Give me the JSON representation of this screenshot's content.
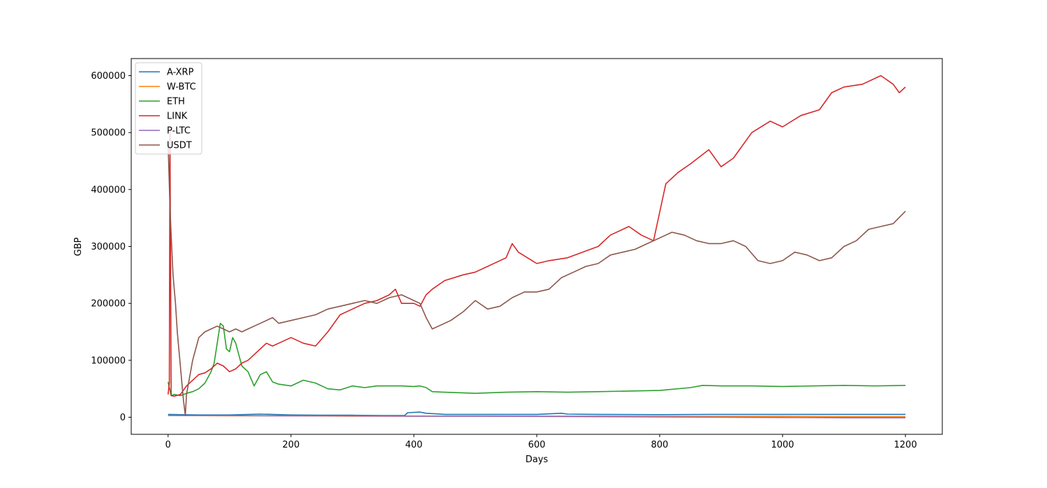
{
  "chart_data": {
    "type": "line",
    "title": "",
    "xlabel": "Days",
    "ylabel": "GBP",
    "xlim": [
      -60,
      1260
    ],
    "ylim": [
      -30000,
      630000
    ],
    "xticks": [
      0,
      200,
      400,
      600,
      800,
      1000,
      1200
    ],
    "yticks": [
      0,
      100000,
      200000,
      300000,
      400000,
      500000,
      600000
    ],
    "grid": false,
    "legend_position": "top-left",
    "series": [
      {
        "name": "A-XRP",
        "color": "#1f77b4",
        "x": [
          0,
          50,
          100,
          150,
          200,
          250,
          300,
          350,
          385,
          390,
          410,
          420,
          450,
          500,
          550,
          600,
          640,
          650,
          700,
          800,
          900,
          1000,
          1100,
          1200
        ],
        "y": [
          5000,
          4000,
          4000,
          5500,
          4000,
          3500,
          3500,
          3000,
          3000,
          8000,
          9000,
          7000,
          5000,
          5000,
          5000,
          5000,
          7000,
          5500,
          5000,
          4500,
          5000,
          5000,
          5000,
          5000
        ]
      },
      {
        "name": "W-BTC",
        "color": "#ff7f0e",
        "x": [
          0,
          100,
          200,
          300,
          400,
          500,
          600,
          700,
          800,
          900,
          1000,
          1100,
          1200
        ],
        "y": [
          3000,
          2500,
          2500,
          2000,
          2000,
          2000,
          2000,
          2000,
          1500,
          1500,
          1500,
          1000,
          1000
        ]
      },
      {
        "name": "ETH",
        "color": "#2ca02c",
        "x": [
          0,
          5,
          10,
          20,
          30,
          40,
          50,
          60,
          70,
          75,
          80,
          85,
          90,
          95,
          100,
          105,
          110,
          115,
          120,
          130,
          140,
          150,
          160,
          170,
          180,
          200,
          220,
          240,
          260,
          280,
          300,
          320,
          340,
          360,
          380,
          400,
          410,
          420,
          430,
          450,
          500,
          550,
          600,
          650,
          700,
          750,
          800,
          850,
          870,
          900,
          950,
          1000,
          1050,
          1100,
          1150,
          1200
        ],
        "y": [
          62000,
          38000,
          40000,
          38000,
          42000,
          45000,
          50000,
          60000,
          80000,
          95000,
          130000,
          165000,
          160000,
          120000,
          115000,
          140000,
          130000,
          110000,
          90000,
          80000,
          55000,
          75000,
          80000,
          62000,
          58000,
          55000,
          65000,
          60000,
          50000,
          48000,
          55000,
          52000,
          55000,
          55000,
          55000,
          54000,
          55000,
          52000,
          45000,
          44000,
          42000,
          44000,
          45000,
          44000,
          45000,
          46000,
          47000,
          52000,
          56000,
          55000,
          55000,
          54000,
          55000,
          56000,
          55000,
          56000
        ]
      },
      {
        "name": "LINK",
        "color": "#d62728",
        "x": [
          0,
          2,
          3,
          5,
          10,
          20,
          30,
          40,
          50,
          60,
          70,
          80,
          90,
          100,
          110,
          120,
          130,
          140,
          150,
          160,
          170,
          180,
          200,
          220,
          240,
          260,
          280,
          300,
          320,
          340,
          360,
          370,
          380,
          400,
          410,
          420,
          430,
          450,
          480,
          500,
          520,
          550,
          560,
          570,
          600,
          620,
          650,
          700,
          720,
          750,
          770,
          790,
          800,
          810,
          830,
          850,
          880,
          900,
          920,
          950,
          980,
          1000,
          1030,
          1060,
          1080,
          1100,
          1130,
          1160,
          1180,
          1190,
          1200
        ],
        "y": [
          40000,
          60000,
          500000,
          38000,
          37000,
          40000,
          55000,
          65000,
          75000,
          78000,
          85000,
          95000,
          90000,
          80000,
          85000,
          95000,
          100000,
          110000,
          120000,
          130000,
          125000,
          130000,
          140000,
          130000,
          125000,
          150000,
          180000,
          190000,
          200000,
          205000,
          215000,
          225000,
          200000,
          200000,
          195000,
          215000,
          225000,
          240000,
          250000,
          255000,
          265000,
          280000,
          305000,
          290000,
          270000,
          275000,
          280000,
          300000,
          320000,
          335000,
          320000,
          310000,
          360000,
          410000,
          430000,
          445000,
          470000,
          440000,
          455000,
          500000,
          520000,
          510000,
          530000,
          540000,
          570000,
          580000,
          585000,
          600000,
          585000,
          570000,
          580000
        ]
      },
      {
        "name": "P-LTC",
        "color": "#9467bd",
        "x": [
          0,
          100,
          200,
          300,
          400,
          500,
          600,
          700,
          800,
          900,
          1000,
          1100,
          1200
        ],
        "y": [
          3000,
          3000,
          2500,
          2500,
          2000,
          2000,
          1500,
          1000,
          500,
          0,
          -500,
          -1000,
          -1000
        ]
      },
      {
        "name": "USDT",
        "color": "#8c564b",
        "x": [
          0,
          3,
          5,
          8,
          12,
          15,
          20,
          25,
          28,
          30,
          35,
          40,
          45,
          50,
          60,
          70,
          80,
          90,
          100,
          110,
          120,
          130,
          140,
          150,
          160,
          170,
          180,
          200,
          220,
          240,
          260,
          280,
          300,
          320,
          340,
          360,
          380,
          400,
          410,
          420,
          430,
          440,
          460,
          480,
          500,
          520,
          540,
          560,
          580,
          600,
          620,
          640,
          660,
          680,
          700,
          720,
          740,
          760,
          780,
          800,
          820,
          840,
          860,
          880,
          900,
          920,
          940,
          960,
          980,
          1000,
          1020,
          1040,
          1060,
          1080,
          1100,
          1120,
          1140,
          1160,
          1180,
          1200
        ],
        "y": [
          480000,
          370000,
          320000,
          250000,
          200000,
          150000,
          90000,
          30000,
          3000,
          40000,
          70000,
          100000,
          120000,
          140000,
          150000,
          155000,
          160000,
          155000,
          150000,
          155000,
          150000,
          155000,
          160000,
          165000,
          170000,
          175000,
          165000,
          170000,
          175000,
          180000,
          190000,
          195000,
          200000,
          205000,
          200000,
          210000,
          215000,
          205000,
          200000,
          175000,
          155000,
          160000,
          170000,
          185000,
          205000,
          190000,
          195000,
          210000,
          220000,
          220000,
          225000,
          245000,
          255000,
          265000,
          270000,
          285000,
          290000,
          295000,
          305000,
          315000,
          325000,
          320000,
          310000,
          305000,
          305000,
          310000,
          300000,
          275000,
          270000,
          275000,
          290000,
          285000,
          275000,
          280000,
          300000,
          310000,
          330000,
          335000,
          340000,
          362000
        ]
      }
    ]
  }
}
